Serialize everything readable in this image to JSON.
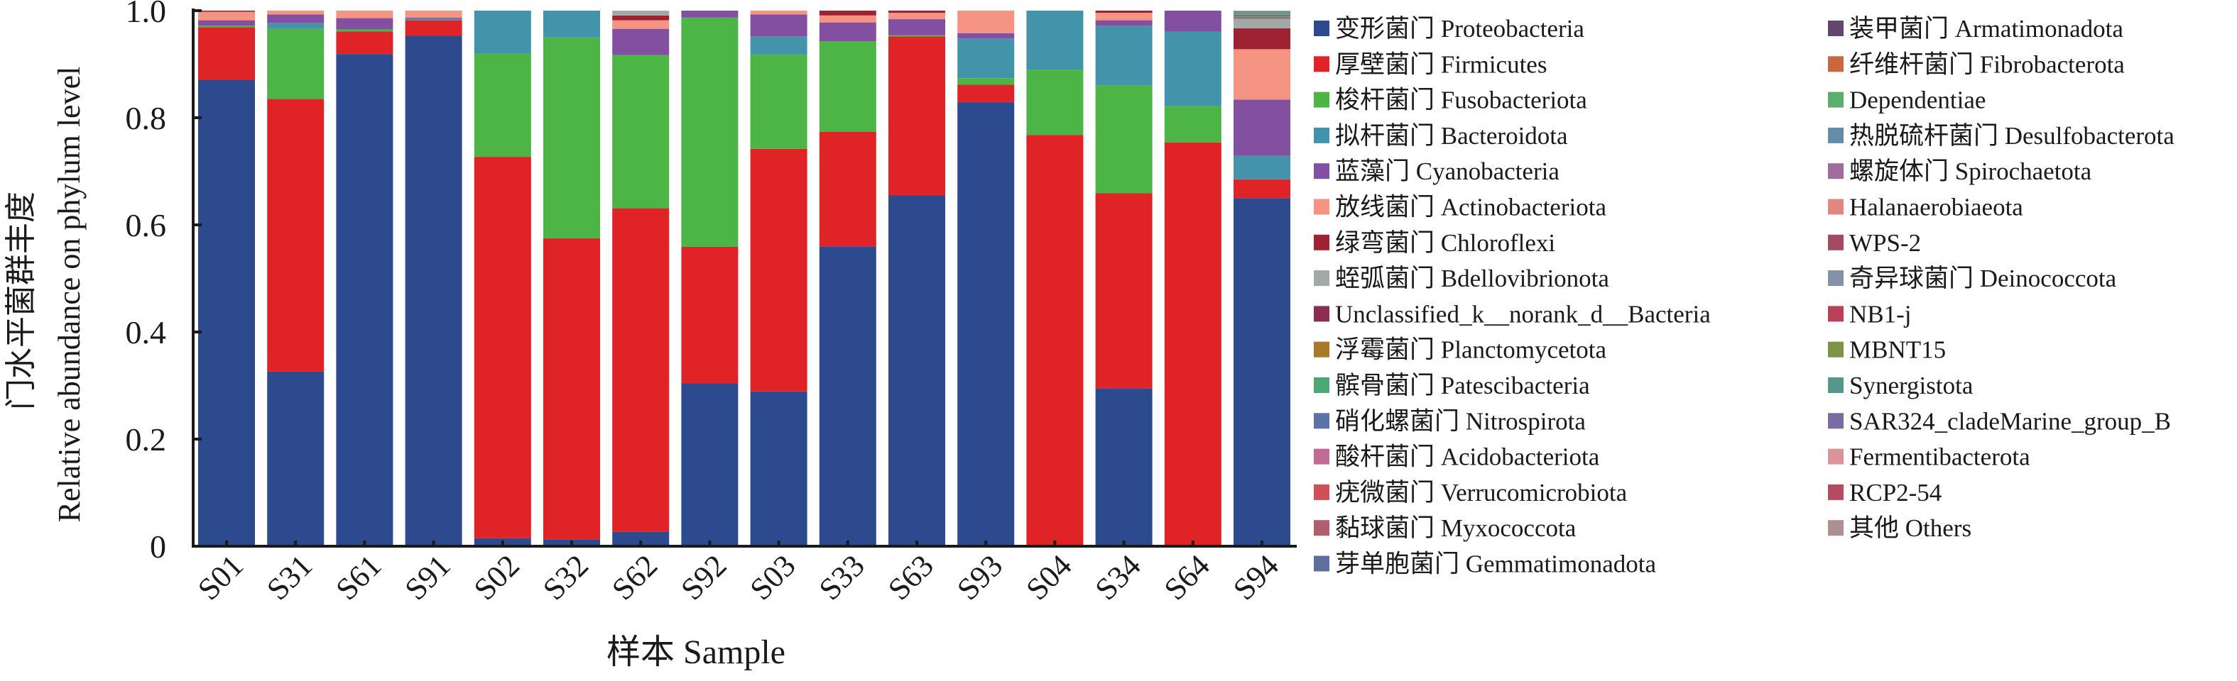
{
  "chart_data": {
    "type": "bar",
    "stacked": true,
    "ylabel_cn": "门水平菌群丰度",
    "ylabel": "Relative abundance on phylum level",
    "xlabel": "样本 Sample",
    "ylim": [
      0,
      1.0
    ],
    "yticks": [
      "0",
      "0.2",
      "0.4",
      "0.6",
      "0.8",
      "1.0"
    ],
    "ytick_values": [
      0,
      0.2,
      0.4,
      0.6,
      0.8,
      1.0
    ],
    "grid": false,
    "legend_position": "right",
    "categories": [
      "S01",
      "S31",
      "S61",
      "S91",
      "S02",
      "S32",
      "S62",
      "S92",
      "S03",
      "S33",
      "S63",
      "S93",
      "S04",
      "S34",
      "S64",
      "S94"
    ],
    "series": [
      {
        "name": "变形菌门 Proteobacteria",
        "color": "#2E4A8E",
        "values": [
          0.871,
          0.326,
          0.919,
          0.953,
          0.015,
          0.013,
          0.027,
          0.304,
          0.289,
          0.56,
          0.655,
          0.829,
          0.0,
          0.295,
          0.0,
          0.65
        ]
      },
      {
        "name": "厚壁菌门 Firmicutes",
        "color": "#E02326",
        "values": [
          0.098,
          0.509,
          0.042,
          0.029,
          0.712,
          0.562,
          0.604,
          0.255,
          0.453,
          0.214,
          0.297,
          0.033,
          0.768,
          0.364,
          0.754,
          0.035
        ]
      },
      {
        "name": "梭杆菌门 Fusobacteriota",
        "color": "#4DB446",
        "values": [
          0.003,
          0.131,
          0.004,
          0.0,
          0.193,
          0.375,
          0.286,
          0.428,
          0.176,
          0.169,
          0.002,
          0.012,
          0.122,
          0.202,
          0.068,
          0.0
        ]
      },
      {
        "name": "拟杆菌门 Bacteroidota",
        "color": "#4394AA",
        "values": [
          0.0,
          0.011,
          0.0,
          0.003,
          0.08,
          0.05,
          0.0,
          0.0,
          0.034,
          0.0,
          0.0,
          0.074,
          0.11,
          0.111,
          0.139,
          0.044
        ]
      },
      {
        "name": "蓝藻门 Cyanobacteria",
        "color": "#8350A1",
        "values": [
          0.01,
          0.016,
          0.021,
          0.002,
          0.0,
          0.0,
          0.049,
          0.013,
          0.041,
          0.035,
          0.03,
          0.01,
          0.0,
          0.01,
          0.039,
          0.105
        ]
      },
      {
        "name": "放线菌门 Actinobacteriota",
        "color": "#F69483",
        "values": [
          0.016,
          0.007,
          0.014,
          0.013,
          0.0,
          0.0,
          0.016,
          0.0,
          0.007,
          0.013,
          0.012,
          0.042,
          0.0,
          0.014,
          0.0,
          0.094
        ]
      },
      {
        "name": "绿弯菌门 Chloroflexi",
        "color": "#9E2232",
        "values": [
          0.002,
          0.0,
          0.0,
          0.0,
          0.0,
          0.0,
          0.009,
          0.0,
          0.0,
          0.009,
          0.004,
          0.0,
          0.0,
          0.004,
          0.0,
          0.039
        ]
      },
      {
        "name": "蛭弧菌门 Bdellovibrionota",
        "color": "#A2A9A9",
        "values": [
          0,
          0,
          0,
          0,
          0,
          0,
          0.009,
          0,
          0,
          0,
          0,
          0,
          0,
          0,
          0,
          0.018
        ]
      },
      {
        "name": "Unclassified_k__norank_d__Bacteria",
        "color": "#8C2C4F",
        "values": [
          0,
          0,
          0,
          0,
          0,
          0,
          0,
          0,
          0,
          0,
          0,
          0,
          0,
          0,
          0,
          0.001
        ]
      },
      {
        "name": "浮霉菌门 Planctomycetota",
        "color": "#A67A28",
        "values": [
          0,
          0,
          0,
          0,
          0,
          0,
          0,
          0,
          0,
          0,
          0,
          0,
          0,
          0,
          0,
          0.002
        ]
      },
      {
        "name": "髌骨菌门 Patescibacteria",
        "color": "#4EA876",
        "values": [
          0,
          0,
          0,
          0,
          0,
          0,
          0,
          0,
          0,
          0,
          0,
          0,
          0,
          0,
          0,
          0.001
        ]
      },
      {
        "name": "硝化螺菌门 Nitrospirota",
        "color": "#5C73A8",
        "values": [
          0,
          0,
          0,
          0,
          0,
          0,
          0,
          0,
          0,
          0,
          0,
          0,
          0,
          0,
          0,
          0.003
        ]
      },
      {
        "name": "酸杆菌门 Acidobacteriota",
        "color": "#C06C97",
        "values": [
          0,
          0,
          0,
          0,
          0,
          0,
          0,
          0,
          0,
          0,
          0,
          0,
          0,
          0,
          0,
          0.001
        ]
      },
      {
        "name": "疣微菌门 Verrucomicrobiota",
        "color": "#D05058",
        "values": [
          0,
          0,
          0,
          0,
          0,
          0,
          0,
          0,
          0,
          0,
          0,
          0,
          0,
          0,
          0,
          0
        ]
      },
      {
        "name": "黏球菌门 Myxococcota",
        "color": "#B05E6C",
        "values": [
          0,
          0,
          0,
          0,
          0,
          0,
          0,
          0,
          0,
          0,
          0,
          0,
          0,
          0,
          0,
          0
        ]
      },
      {
        "name": "芽单胞菌门 Gemmatimonadota",
        "color": "#5E6F9E",
        "values": [
          0,
          0,
          0,
          0,
          0,
          0,
          0,
          0,
          0,
          0,
          0,
          0,
          0,
          0,
          0,
          0
        ]
      },
      {
        "name": "装甲菌门 Armatimonadota",
        "color": "#63466E",
        "values": [
          0,
          0,
          0,
          0,
          0,
          0,
          0,
          0,
          0,
          0,
          0,
          0,
          0,
          0,
          0,
          0
        ]
      },
      {
        "name": "纤维杆菌门 Fibrobacterota",
        "color": "#C9673F",
        "values": [
          0,
          0,
          0,
          0,
          0,
          0,
          0,
          0,
          0,
          0,
          0,
          0,
          0,
          0,
          0,
          0
        ]
      },
      {
        "name": "Dependentiae",
        "color": "#5CAE6D",
        "values": [
          0,
          0,
          0,
          0,
          0,
          0,
          0,
          0,
          0,
          0,
          0,
          0,
          0,
          0,
          0,
          0
        ]
      },
      {
        "name": "热脱硫杆菌门 Desulfobacterota",
        "color": "#628CA8",
        "values": [
          0,
          0,
          0,
          0,
          0,
          0,
          0,
          0,
          0,
          0,
          0,
          0,
          0,
          0,
          0,
          0
        ]
      },
      {
        "name": "螺旋体门 Spirochaetota",
        "color": "#A06C9E",
        "values": [
          0,
          0,
          0,
          0,
          0,
          0,
          0,
          0,
          0,
          0,
          0,
          0,
          0,
          0,
          0,
          0
        ]
      },
      {
        "name": "Halanaerobiaeota",
        "color": "#E0877F",
        "values": [
          0,
          0,
          0,
          0,
          0,
          0,
          0,
          0,
          0,
          0,
          0,
          0,
          0,
          0,
          0,
          0
        ]
      },
      {
        "name": "WPS-2",
        "color": "#A24B60",
        "values": [
          0,
          0,
          0,
          0,
          0,
          0,
          0,
          0,
          0,
          0,
          0,
          0,
          0,
          0,
          0,
          0
        ]
      },
      {
        "name": "奇异球菌门 Deinococcota",
        "color": "#8591A8",
        "values": [
          0,
          0,
          0,
          0,
          0,
          0,
          0,
          0,
          0,
          0,
          0,
          0,
          0,
          0,
          0,
          0
        ]
      },
      {
        "name": "NB1-j",
        "color": "#BA3F58",
        "values": [
          0,
          0,
          0,
          0,
          0,
          0,
          0,
          0,
          0,
          0,
          0,
          0,
          0,
          0,
          0,
          0
        ]
      },
      {
        "name": "MBNT15",
        "color": "#7D9448",
        "values": [
          0,
          0,
          0,
          0,
          0,
          0,
          0,
          0,
          0,
          0,
          0,
          0,
          0,
          0,
          0,
          0.002
        ]
      },
      {
        "name": "Synergistota",
        "color": "#55978F",
        "values": [
          0,
          0,
          0,
          0,
          0,
          0,
          0,
          0,
          0,
          0,
          0,
          0,
          0,
          0,
          0,
          0.004
        ]
      },
      {
        "name": "SAR324_cladeMarine_group_B",
        "color": "#7A6CA0",
        "values": [
          0,
          0,
          0,
          0,
          0,
          0,
          0,
          0,
          0,
          0,
          0,
          0,
          0,
          0,
          0,
          0
        ]
      },
      {
        "name": "Fermentibacterota",
        "color": "#DB939C",
        "values": [
          0,
          0,
          0,
          0,
          0,
          0,
          0,
          0,
          0,
          0,
          0,
          0,
          0,
          0,
          0,
          0
        ]
      },
      {
        "name": "RCP2-54",
        "color": "#B54B61",
        "values": [
          0,
          0,
          0,
          0,
          0,
          0,
          0,
          0,
          0,
          0,
          0,
          0,
          0,
          0,
          0,
          0
        ]
      },
      {
        "name": "其他 Others",
        "color": "#AC9094",
        "values": [
          0,
          0,
          0,
          0,
          0,
          0,
          0,
          0,
          0,
          0,
          0,
          0,
          0,
          0,
          0,
          0.001
        ]
      }
    ]
  }
}
